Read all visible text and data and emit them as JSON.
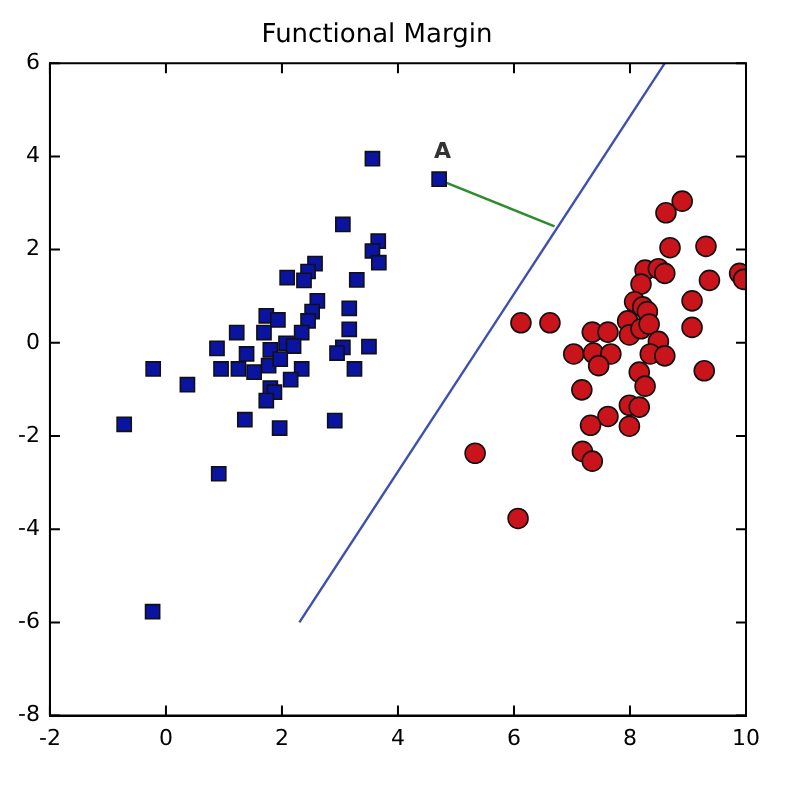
{
  "chart_data": {
    "type": "scatter",
    "title": "Functional Margin",
    "xlim": [
      -2,
      10
    ],
    "xticks": [
      -2,
      0,
      2,
      4,
      6,
      8,
      10
    ],
    "ylim": [
      -8,
      6
    ],
    "yticks": [
      -8,
      -6,
      -4,
      -2,
      0,
      2,
      4,
      6
    ],
    "grid": false,
    "legend": false,
    "annotations": [
      {
        "text": "A",
        "x": 4.7,
        "y": 3.5
      }
    ],
    "series": [
      {
        "type": "scatter",
        "marker": "square",
        "color": "#0a14a0",
        "x": [
          3.56,
          4.71,
          3.05,
          3.66,
          3.56,
          3.67,
          2.57,
          2.45,
          2.09,
          2.38,
          3.29,
          2.61,
          3.16,
          2.52,
          1.73,
          1.93,
          2.45,
          1.22,
          2.34,
          3.16,
          1.69,
          0.88,
          1.39,
          1.8,
          2.07,
          2.2,
          3.05,
          3.5,
          2.95,
          -0.22,
          0.95,
          1.25,
          1.52,
          1.77,
          1.97,
          2.34,
          3.25,
          0.37,
          2.15,
          1.8,
          1.87,
          1.73,
          -0.72,
          1.36,
          1.96,
          2.91,
          0.91,
          -0.23
        ],
        "values": [
          3.95,
          3.51,
          2.54,
          2.18,
          1.97,
          1.72,
          1.7,
          1.53,
          1.4,
          1.34,
          1.35,
          0.9,
          0.74,
          0.67,
          0.58,
          0.49,
          0.47,
          0.22,
          0.22,
          0.29,
          0.22,
          -0.12,
          -0.24,
          -0.15,
          -0.01,
          -0.07,
          -0.1,
          -0.08,
          -0.22,
          -0.56,
          -0.56,
          -0.56,
          -0.63,
          -0.49,
          -0.35,
          -0.56,
          -0.56,
          -0.9,
          -0.79,
          -0.97,
          -1.06,
          -1.24,
          -1.75,
          -1.65,
          -1.83,
          -1.67,
          -2.81,
          -5.77
        ]
      },
      {
        "type": "scatter",
        "marker": "circle",
        "color": "#c8141a",
        "x": [
          8.9,
          8.62,
          8.69,
          9.31,
          8.26,
          8.49,
          8.6,
          8.19,
          9.37,
          9.89,
          9.96,
          9.07,
          8.08,
          8.22,
          8.3,
          6.12,
          6.62,
          7.35,
          7.62,
          7.96,
          7.99,
          8.19,
          8.33,
          9.07,
          8.49,
          7.03,
          7.37,
          7.67,
          7.46,
          8.35,
          8.6,
          8.16,
          9.28,
          7.17,
          8.26,
          7.99,
          8.16,
          7.62,
          7.32,
          7.99,
          7.18,
          7.35,
          5.33,
          6.07
        ],
        "values": [
          3.04,
          2.79,
          2.04,
          2.07,
          1.56,
          1.59,
          1.49,
          1.26,
          1.34,
          1.49,
          1.36,
          0.9,
          0.88,
          0.77,
          0.67,
          0.43,
          0.43,
          0.23,
          0.23,
          0.47,
          0.17,
          0.3,
          0.4,
          0.33,
          0.03,
          -0.24,
          -0.22,
          -0.24,
          -0.49,
          -0.24,
          -0.28,
          -0.63,
          -0.6,
          -1.01,
          -0.93,
          -1.34,
          -1.38,
          -1.58,
          -1.77,
          -1.79,
          -2.33,
          -2.54,
          -2.37,
          -3.77
        ]
      },
      {
        "type": "line",
        "marker": "none",
        "color": "#3d4fb0",
        "x": [
          2.3,
          8.6
        ],
        "values": [
          -6,
          6
        ]
      },
      {
        "type": "line",
        "marker": "none",
        "color": "#2e8b2e",
        "x": [
          4.7,
          6.7
        ],
        "values": [
          3.5,
          2.5
        ]
      }
    ]
  }
}
